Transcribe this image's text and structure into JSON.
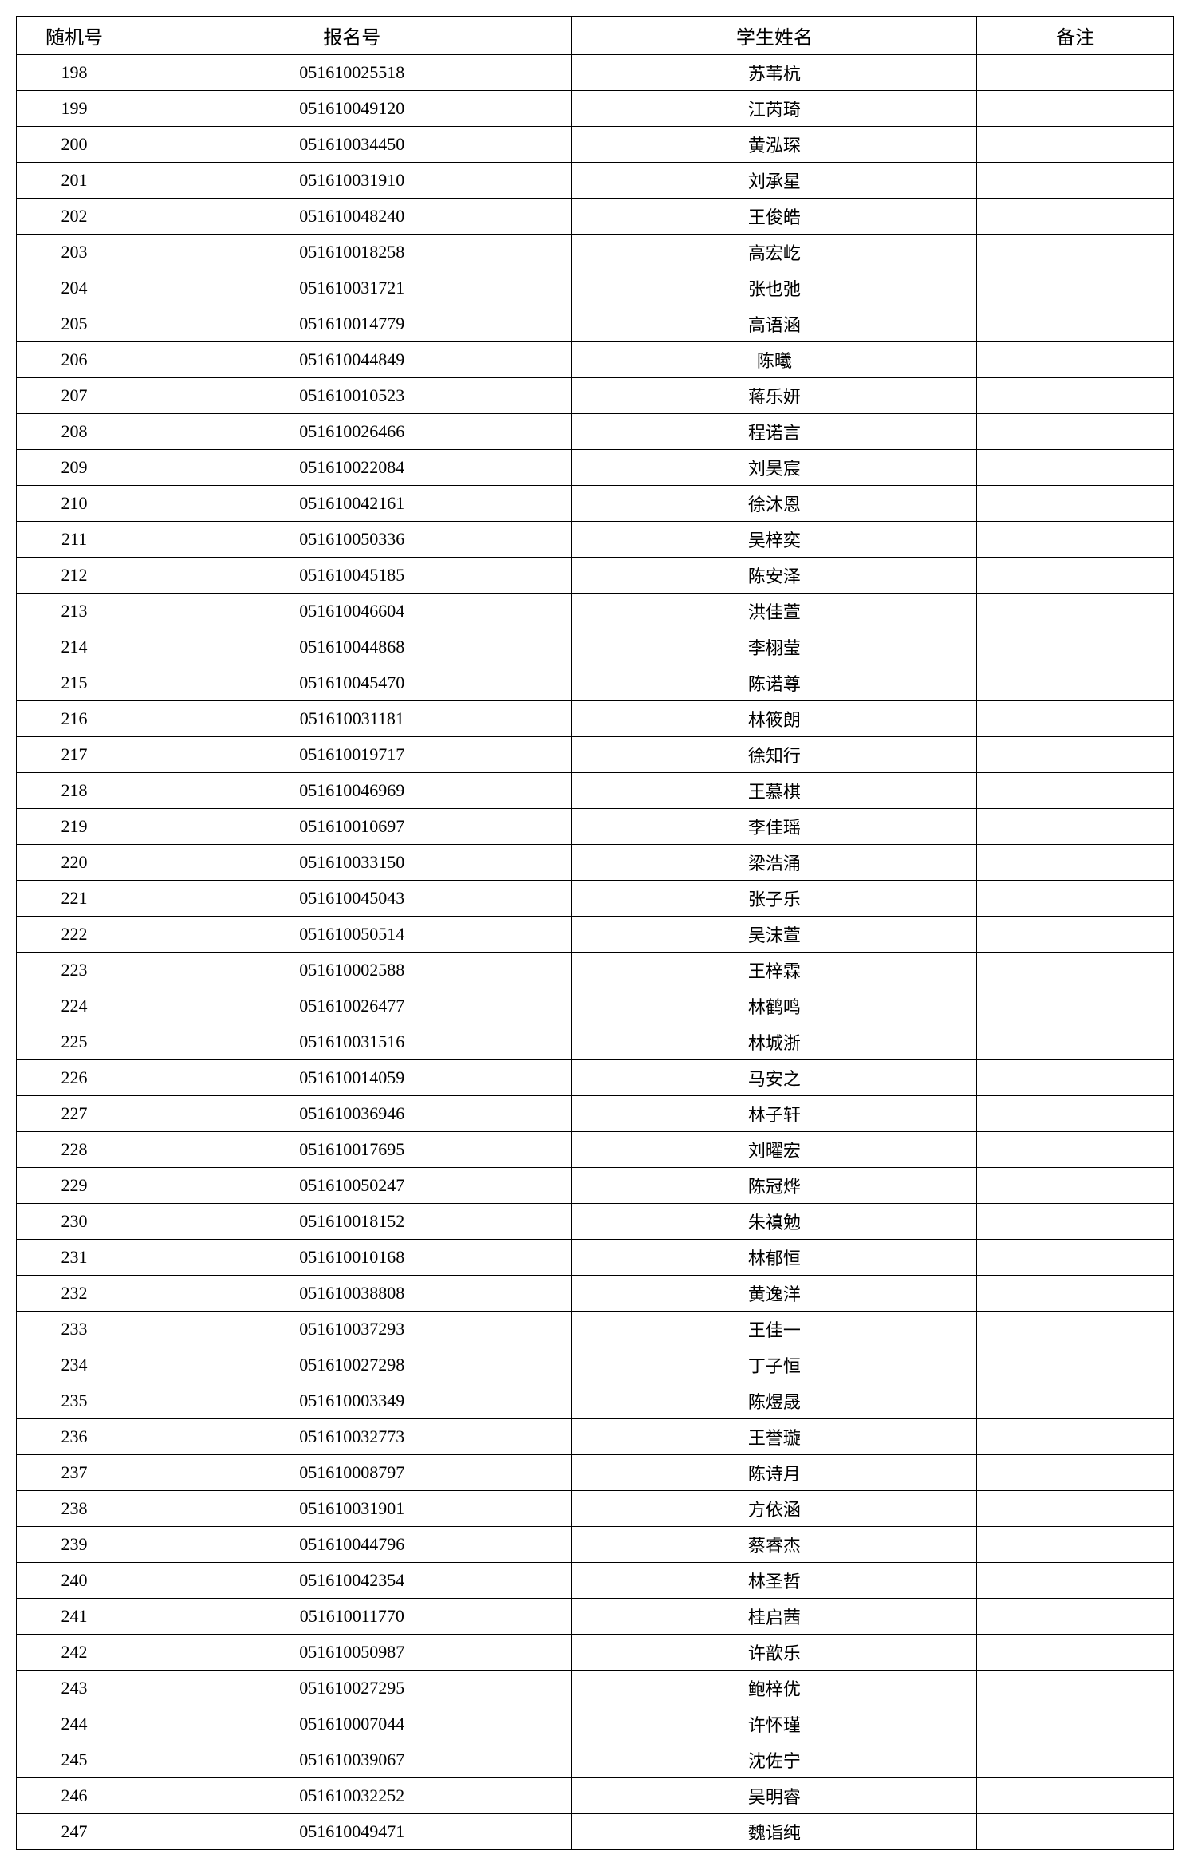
{
  "table": {
    "headers": {
      "random": "随机号",
      "regnum": "报名号",
      "name": "学生姓名",
      "note": "备注"
    },
    "rows": [
      {
        "random": "198",
        "regnum": "051610025518",
        "name": "苏苇杭",
        "note": ""
      },
      {
        "random": "199",
        "regnum": "051610049120",
        "name": "江芮琦",
        "note": ""
      },
      {
        "random": "200",
        "regnum": "051610034450",
        "name": "黄泓琛",
        "note": ""
      },
      {
        "random": "201",
        "regnum": "051610031910",
        "name": "刘承星",
        "note": ""
      },
      {
        "random": "202",
        "regnum": "051610048240",
        "name": "王俊皓",
        "note": ""
      },
      {
        "random": "203",
        "regnum": "051610018258",
        "name": "高宏屹",
        "note": ""
      },
      {
        "random": "204",
        "regnum": "051610031721",
        "name": "张也弛",
        "note": ""
      },
      {
        "random": "205",
        "regnum": "051610014779",
        "name": "高语涵",
        "note": ""
      },
      {
        "random": "206",
        "regnum": "051610044849",
        "name": "陈曦",
        "note": ""
      },
      {
        "random": "207",
        "regnum": "051610010523",
        "name": "蒋乐妍",
        "note": ""
      },
      {
        "random": "208",
        "regnum": "051610026466",
        "name": "程诺言",
        "note": ""
      },
      {
        "random": "209",
        "regnum": "051610022084",
        "name": "刘昊宸",
        "note": ""
      },
      {
        "random": "210",
        "regnum": "051610042161",
        "name": "徐沐恩",
        "note": ""
      },
      {
        "random": "211",
        "regnum": "051610050336",
        "name": "吴梓奕",
        "note": ""
      },
      {
        "random": "212",
        "regnum": "051610045185",
        "name": "陈安泽",
        "note": ""
      },
      {
        "random": "213",
        "regnum": "051610046604",
        "name": "洪佳萱",
        "note": ""
      },
      {
        "random": "214",
        "regnum": "051610044868",
        "name": "李栩莹",
        "note": ""
      },
      {
        "random": "215",
        "regnum": "051610045470",
        "name": "陈诺尊",
        "note": ""
      },
      {
        "random": "216",
        "regnum": "051610031181",
        "name": "林筱朗",
        "note": ""
      },
      {
        "random": "217",
        "regnum": "051610019717",
        "name": "徐知行",
        "note": ""
      },
      {
        "random": "218",
        "regnum": "051610046969",
        "name": "王慕棋",
        "note": ""
      },
      {
        "random": "219",
        "regnum": "051610010697",
        "name": "李佳瑶",
        "note": ""
      },
      {
        "random": "220",
        "regnum": "051610033150",
        "name": "梁浩涌",
        "note": ""
      },
      {
        "random": "221",
        "regnum": "051610045043",
        "name": "张子乐",
        "note": ""
      },
      {
        "random": "222",
        "regnum": "051610050514",
        "name": "吴沫萱",
        "note": ""
      },
      {
        "random": "223",
        "regnum": "051610002588",
        "name": "王梓霖",
        "note": ""
      },
      {
        "random": "224",
        "regnum": "051610026477",
        "name": "林鹤鸣",
        "note": ""
      },
      {
        "random": "225",
        "regnum": "051610031516",
        "name": "林城浙",
        "note": ""
      },
      {
        "random": "226",
        "regnum": "051610014059",
        "name": "马安之",
        "note": ""
      },
      {
        "random": "227",
        "regnum": "051610036946",
        "name": "林子轩",
        "note": ""
      },
      {
        "random": "228",
        "regnum": "051610017695",
        "name": "刘曜宏",
        "note": ""
      },
      {
        "random": "229",
        "regnum": "051610050247",
        "name": "陈冠烨",
        "note": ""
      },
      {
        "random": "230",
        "regnum": "051610018152",
        "name": "朱禛勉",
        "note": ""
      },
      {
        "random": "231",
        "regnum": "051610010168",
        "name": "林郁恒",
        "note": ""
      },
      {
        "random": "232",
        "regnum": "051610038808",
        "name": "黄逸洋",
        "note": ""
      },
      {
        "random": "233",
        "regnum": "051610037293",
        "name": "王佳一",
        "note": ""
      },
      {
        "random": "234",
        "regnum": "051610027298",
        "name": "丁子恒",
        "note": ""
      },
      {
        "random": "235",
        "regnum": "051610003349",
        "name": "陈煜晟",
        "note": ""
      },
      {
        "random": "236",
        "regnum": "051610032773",
        "name": "王誉璇",
        "note": ""
      },
      {
        "random": "237",
        "regnum": "051610008797",
        "name": "陈诗月",
        "note": ""
      },
      {
        "random": "238",
        "regnum": "051610031901",
        "name": "方依涵",
        "note": ""
      },
      {
        "random": "239",
        "regnum": "051610044796",
        "name": "蔡睿杰",
        "note": ""
      },
      {
        "random": "240",
        "regnum": "051610042354",
        "name": "林圣哲",
        "note": ""
      },
      {
        "random": "241",
        "regnum": "051610011770",
        "name": "桂启茜",
        "note": ""
      },
      {
        "random": "242",
        "regnum": "051610050987",
        "name": "许歆乐",
        "note": ""
      },
      {
        "random": "243",
        "regnum": "051610027295",
        "name": "鲍梓优",
        "note": ""
      },
      {
        "random": "244",
        "regnum": "051610007044",
        "name": "许怀瑾",
        "note": ""
      },
      {
        "random": "245",
        "regnum": "051610039067",
        "name": "沈佐宁",
        "note": ""
      },
      {
        "random": "246",
        "regnum": "051610032252",
        "name": "吴明睿",
        "note": ""
      },
      {
        "random": "247",
        "regnum": "051610049471",
        "name": "魏诣纯",
        "note": ""
      }
    ]
  },
  "style": {
    "border_color": "#000000",
    "background_color": "#ffffff",
    "header_fontsize": 24,
    "cell_fontsize": 22,
    "font_family": "SimSun"
  }
}
